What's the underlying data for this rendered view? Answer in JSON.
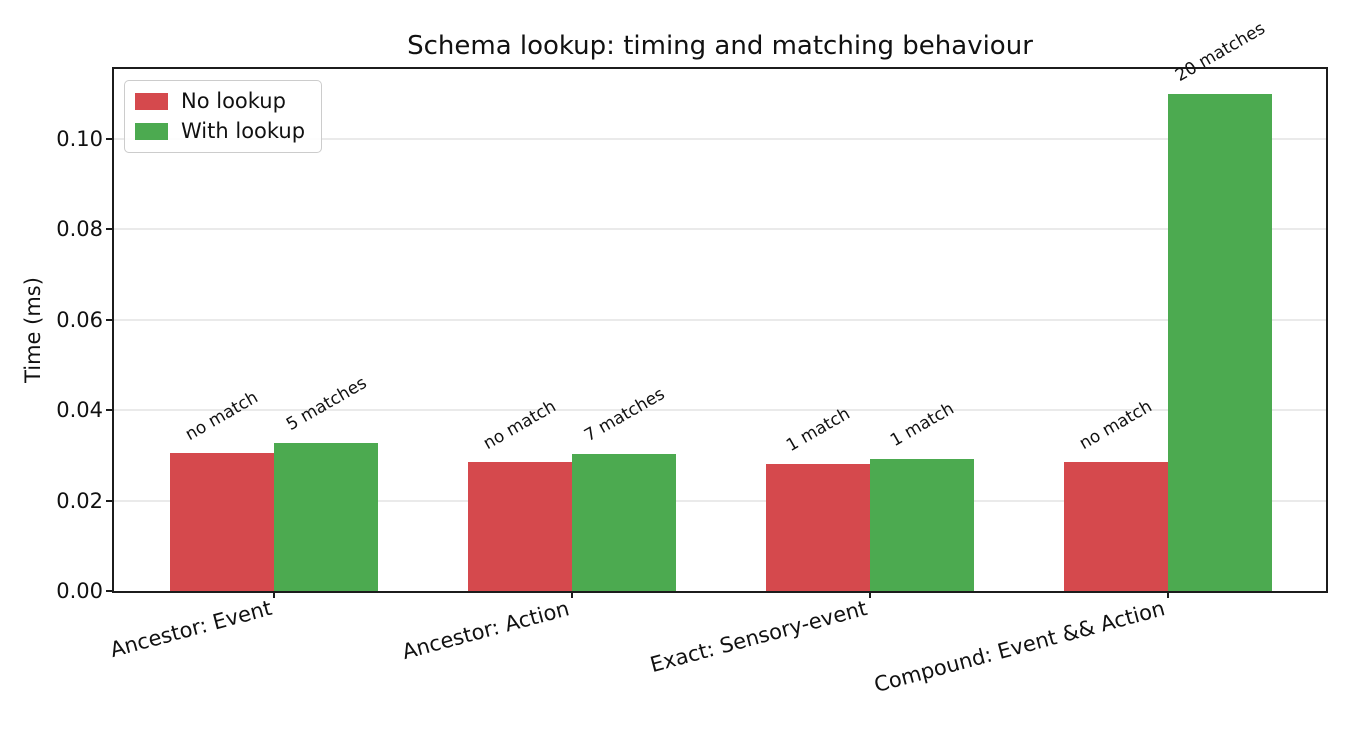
{
  "figure": {
    "title": "Schema lookup: timing and matching behaviour",
    "ylabel": "Time (ms)"
  },
  "legend": {
    "position": "upper left",
    "items": [
      {
        "label": "No lookup",
        "color": "#d5494d"
      },
      {
        "label": "With lookup",
        "color": "#4caa50"
      }
    ]
  },
  "chart_data": {
    "type": "bar",
    "title": "Schema lookup: timing and matching behaviour",
    "xlabel": "",
    "ylabel": "Time (ms)",
    "categories": [
      "Ancestor: Event",
      "Ancestor: Action",
      "Exact: Sensory-event",
      "Compound: Event && Action"
    ],
    "series": [
      {
        "name": "No lookup",
        "color": "#d5494d",
        "offset": -0.175,
        "values": [
          0.0305,
          0.0285,
          0.028,
          0.0285
        ],
        "annotations": [
          "no match",
          "no match",
          "1 match",
          "no match"
        ]
      },
      {
        "name": "With lookup",
        "color": "#4caa50",
        "offset": 0.175,
        "values": [
          0.0327,
          0.0303,
          0.0291,
          0.1099
        ],
        "annotations": [
          "5 matches",
          "7 matches",
          "1 match",
          "20 matches"
        ]
      }
    ],
    "bar_width": 0.35,
    "ylim": [
      0,
      0.1157
    ],
    "xlim": [
      -0.54,
      3.533
    ],
    "yticks": [
      {
        "value": 0.0,
        "label": "0.00"
      },
      {
        "value": 0.02,
        "label": "0.02"
      },
      {
        "value": 0.04,
        "label": "0.04"
      },
      {
        "value": 0.06,
        "label": "0.06"
      },
      {
        "value": 0.08,
        "label": "0.08"
      },
      {
        "value": 0.1,
        "label": "0.10"
      }
    ],
    "grid": true,
    "x_tick_rotation_deg": 15,
    "annotation_rotation_deg": 30
  },
  "colors": {
    "spine": "#1c1c1c",
    "grid": "#eaeaea",
    "text": "#111111",
    "legend_border": "#cccccc",
    "background": "#ffffff"
  }
}
